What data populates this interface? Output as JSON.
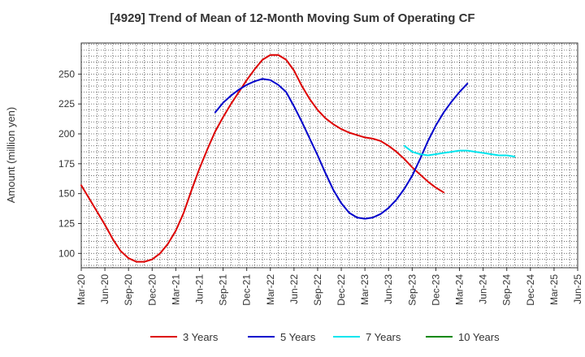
{
  "chart_data": {
    "type": "line",
    "title": "[4929]  Trend of Mean of 12-Month Moving Sum of Operating CF",
    "xlabel": "",
    "ylabel": "Amount (million yen)",
    "ylim": [
      88,
      276
    ],
    "yticks": [
      100,
      125,
      150,
      175,
      200,
      225,
      250
    ],
    "x_ticks": [
      "Mar-20",
      "Jun-20",
      "Sep-20",
      "Dec-20",
      "Mar-21",
      "Jun-21",
      "Sep-21",
      "Dec-21",
      "Mar-22",
      "Jun-22",
      "Sep-22",
      "Dec-22",
      "Mar-23",
      "Jun-23",
      "Sep-23",
      "Dec-23",
      "Mar-24",
      "Jun-24",
      "Sep-24",
      "Dec-24",
      "Mar-25",
      "Jun-25"
    ],
    "grid": true,
    "legend_position": "bottom",
    "series": [
      {
        "name": "3 Years",
        "color": "#dd0000",
        "x_start": "Mar-20",
        "values": [
          157,
          146,
          135,
          124,
          112,
          102,
          96,
          93,
          93,
          95,
          100,
          108,
          119,
          134,
          153,
          171,
          187,
          202,
          214,
          225,
          235,
          245,
          254,
          262,
          266,
          266,
          262,
          253,
          240,
          229,
          220,
          213,
          208,
          204,
          201,
          199,
          197,
          196,
          194,
          190,
          185,
          179,
          172,
          166,
          160,
          155,
          151
        ]
      },
      {
        "name": "5 Years",
        "color": "#0000cc",
        "x_start": "Aug-21",
        "values": [
          218,
          226,
          232,
          237,
          241,
          244,
          246,
          245,
          241,
          235,
          223,
          210,
          196,
          182,
          167,
          153,
          142,
          134,
          130,
          129,
          130,
          133,
          138,
          145,
          154,
          165,
          179,
          194,
          207,
          218,
          227,
          235,
          242
        ]
      },
      {
        "name": "7 Years",
        "color": "#00e5ee",
        "x_start": "Aug-23",
        "values": [
          190,
          185,
          183,
          182,
          183,
          184,
          185,
          186,
          186,
          185,
          184,
          183,
          182,
          182,
          181
        ]
      },
      {
        "name": "10 Years",
        "color": "#008800",
        "x_start": "",
        "values": []
      }
    ]
  }
}
